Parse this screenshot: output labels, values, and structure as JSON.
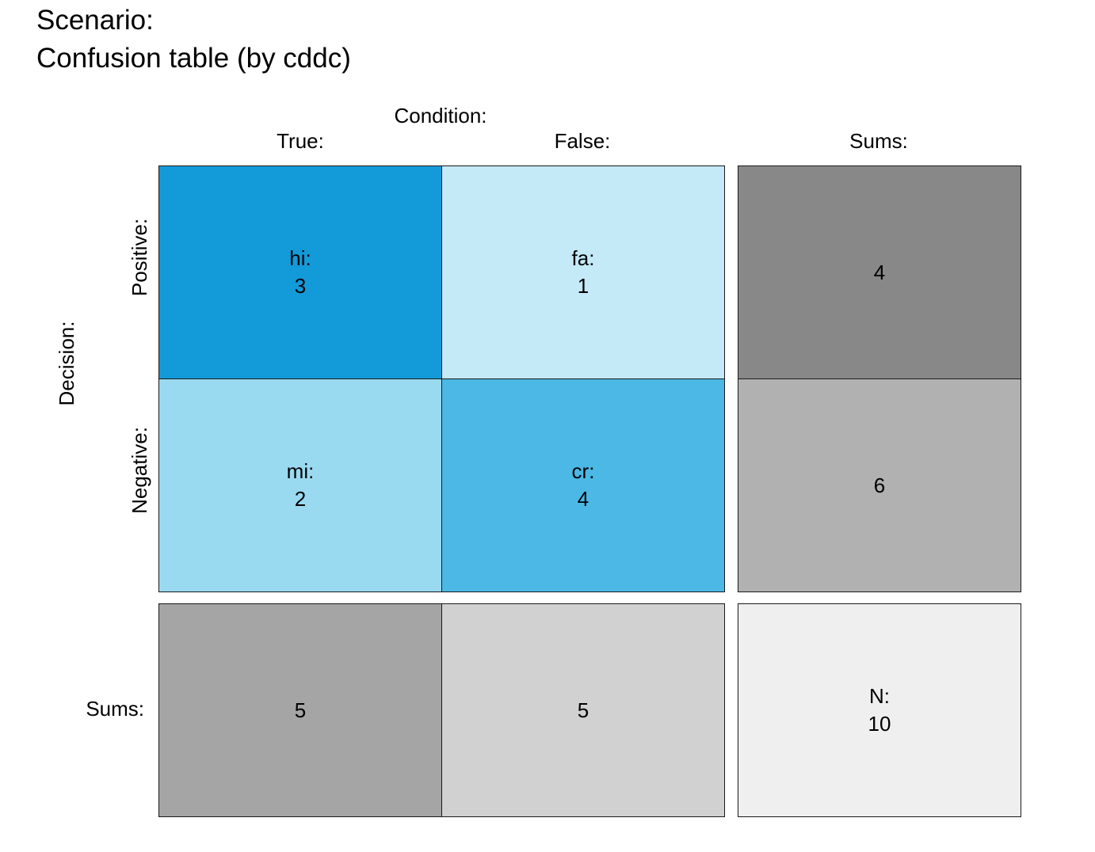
{
  "title": {
    "line1": "Scenario:",
    "line2": "Confusion table (by cddc)"
  },
  "header": {
    "condition_label": "Condition:",
    "col_true": "True:",
    "col_false": "False:",
    "col_sums": "Sums:"
  },
  "rows": {
    "decision_label": "Decision:",
    "row_positive": "Positive:",
    "row_negative": "Negative:",
    "row_sums": "Sums:"
  },
  "colors": {
    "hi": "#139ad9",
    "fa": "#c4e9f7",
    "mi": "#9adaf1",
    "cr": "#4bb8e5",
    "sum_pos": "#888888",
    "sum_neg": "#b1b1b1",
    "sum_true": "#a5a5a5",
    "sum_false": "#d1d1d1",
    "total": "#efefef"
  },
  "chart_data": {
    "type": "table",
    "title": "Confusion table (by cddc)",
    "columns": [
      "True:",
      "False:",
      "Sums:"
    ],
    "rows": [
      "Positive:",
      "Negative:",
      "Sums:"
    ],
    "cells": {
      "hi": {
        "label": "hi:",
        "value": "3"
      },
      "fa": {
        "label": "fa:",
        "value": "1"
      },
      "mi": {
        "label": "mi:",
        "value": "2"
      },
      "cr": {
        "label": "cr:",
        "value": "4"
      },
      "sum_positive": {
        "value": "4"
      },
      "sum_negative": {
        "value": "6"
      },
      "sum_true": {
        "value": "5"
      },
      "sum_false": {
        "value": "5"
      },
      "total": {
        "label": "N:",
        "value": "10"
      }
    }
  }
}
